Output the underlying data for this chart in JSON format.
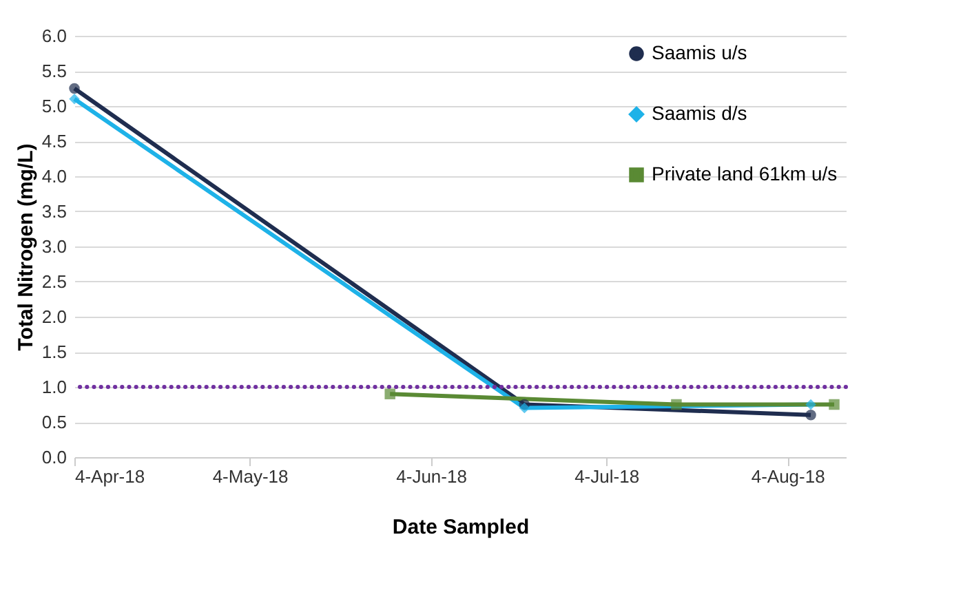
{
  "chart_data": {
    "type": "line",
    "xlabel": "Date Sampled",
    "ylabel": "Total Nitrogen (mg/L)",
    "xlim": [
      "2018-04-04",
      "2018-08-14"
    ],
    "xticks": [
      {
        "value": "2018-04-04",
        "label": "4-Apr-18"
      },
      {
        "value": "2018-05-04",
        "label": "4-May-18"
      },
      {
        "value": "2018-06-04",
        "label": "4-Jun-18"
      },
      {
        "value": "2018-07-04",
        "label": "4-Jul-18"
      },
      {
        "value": "2018-08-04",
        "label": "4-Aug-18"
      }
    ],
    "ylim": [
      0,
      6
    ],
    "yticks": [
      {
        "value": 0,
        "label": "0.0"
      },
      {
        "value": 0.5,
        "label": "0.5"
      },
      {
        "value": 1,
        "label": "1.0"
      },
      {
        "value": 1.5,
        "label": "1.5"
      },
      {
        "value": 2,
        "label": "2.0"
      },
      {
        "value": 2.5,
        "label": "2.5"
      },
      {
        "value": 3,
        "label": "3.0"
      },
      {
        "value": 3.5,
        "label": "3.5"
      },
      {
        "value": 4,
        "label": "4.0"
      },
      {
        "value": 4.5,
        "label": "4.5"
      },
      {
        "value": 5,
        "label": "5.0"
      },
      {
        "value": 5.5,
        "label": "5.5"
      },
      {
        "value": 6,
        "label": "6.0"
      }
    ],
    "series": [
      {
        "name": "Saamis u/s",
        "color": "#1f2d4f",
        "marker": "circle",
        "x": [
          "2018-04-04",
          "2018-06-20",
          "2018-08-08"
        ],
        "values": [
          5.25,
          0.75,
          0.6
        ]
      },
      {
        "name": "Saamis d/s",
        "color": "#1eb2e8",
        "marker": "diamond",
        "x": [
          "2018-04-04",
          "2018-06-20",
          "2018-08-08"
        ],
        "values": [
          5.1,
          0.7,
          0.75
        ]
      },
      {
        "name": "Private land 61km u/s",
        "color": "#5a8a34",
        "marker": "square",
        "x": [
          "2018-05-28",
          "2018-07-16",
          "2018-08-12"
        ],
        "values": [
          0.9,
          0.75,
          0.75
        ]
      }
    ],
    "ref_lines": [
      {
        "axis": "y",
        "value": 1,
        "color": "#7030a0",
        "line_style": "dotted"
      }
    ],
    "grid": "y",
    "legend": "top right",
    "line_style": "solid"
  }
}
